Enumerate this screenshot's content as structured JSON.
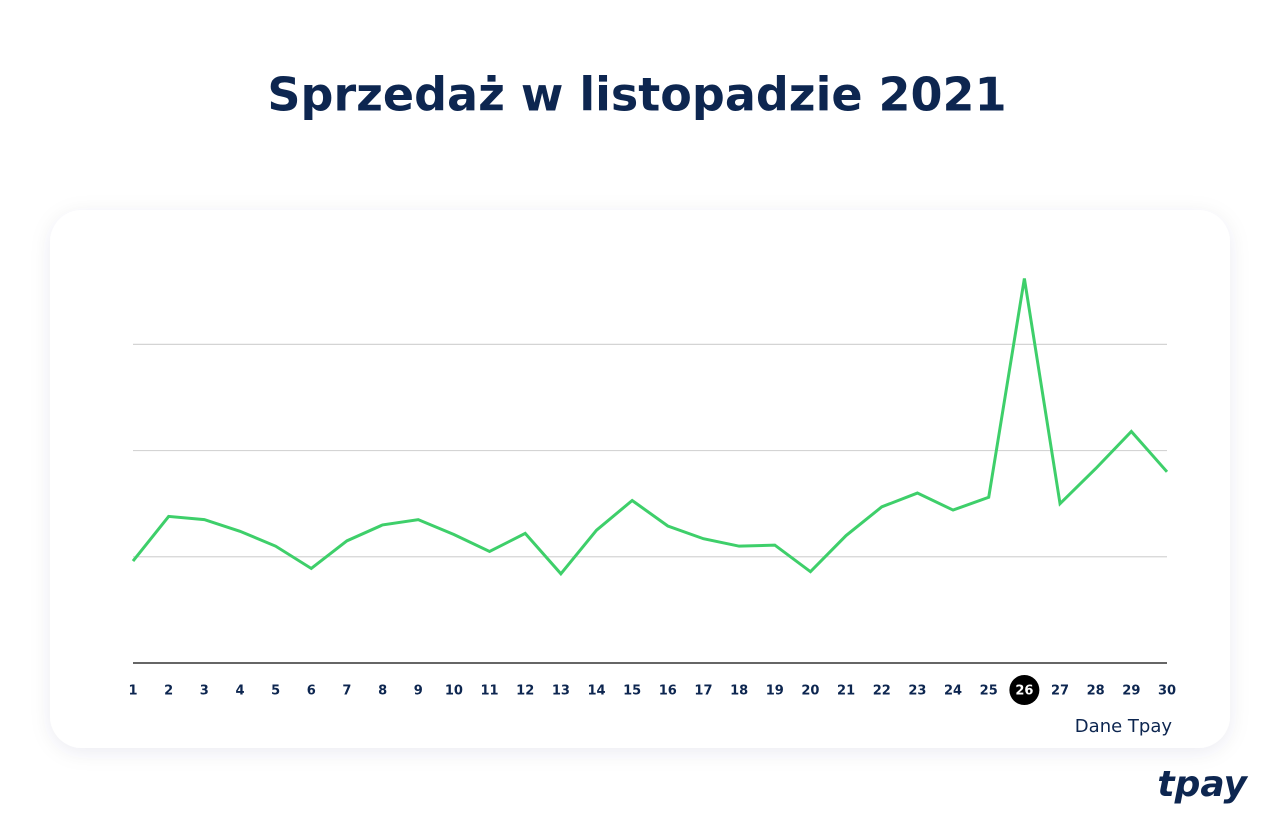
{
  "chart_data": {
    "type": "line",
    "title": "Sprzedaż w listopadzie 2021",
    "categories": [
      "1",
      "2",
      "3",
      "4",
      "5",
      "6",
      "7",
      "8",
      "9",
      "10",
      "11",
      "12",
      "13",
      "14",
      "15",
      "16",
      "17",
      "18",
      "19",
      "20",
      "21",
      "22",
      "23",
      "24",
      "25",
      "26",
      "27",
      "28",
      "29",
      "30"
    ],
    "series": [
      {
        "color": "#3ecf6a",
        "values": [
          0.96,
          1.38,
          1.35,
          1.24,
          1.1,
          0.89,
          1.15,
          1.3,
          1.35,
          1.21,
          1.05,
          1.22,
          0.84,
          1.25,
          1.53,
          1.29,
          1.17,
          1.1,
          1.11,
          0.86,
          1.2,
          1.47,
          1.6,
          1.44,
          1.56,
          3.62,
          1.5,
          1.83,
          2.18,
          1.8
        ]
      }
    ],
    "ylim": [
      0,
      3.7
    ],
    "yticks": [
      0,
      1,
      2,
      3
    ],
    "grid": true,
    "highlight_category": "26",
    "source": "Dane Tpay"
  },
  "logo": "tpay"
}
